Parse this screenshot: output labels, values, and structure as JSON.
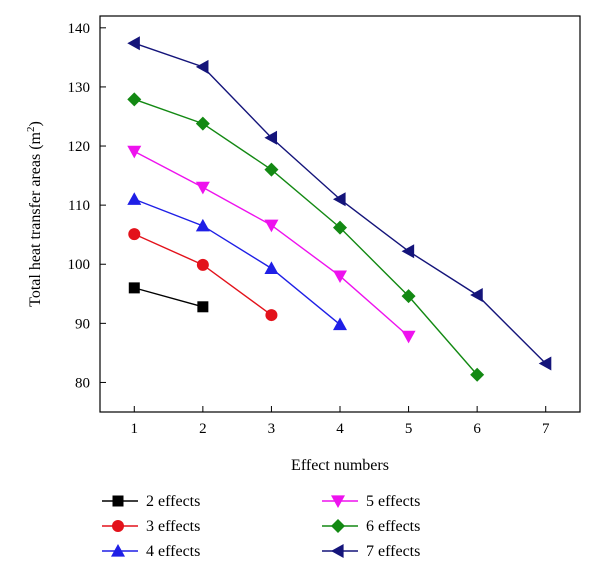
{
  "chart_data": {
    "type": "line",
    "xlabel": "Effect numbers",
    "ylabel_main": "Total heat transfer areas (m",
    "ylabel_sup": "2",
    "ylabel_end": ")",
    "xlim": [
      0.5,
      7.5
    ],
    "ylim": [
      75,
      142
    ],
    "xticks": [
      1,
      2,
      3,
      4,
      5,
      6,
      7
    ],
    "yticks": [
      80,
      90,
      100,
      110,
      120,
      130,
      140
    ],
    "grid": false,
    "legend_position": "bottom",
    "series": [
      {
        "name": "2 effects",
        "color": "#000000",
        "marker": "square",
        "x": [
          1,
          2
        ],
        "y": [
          96.0,
          92.8
        ]
      },
      {
        "name": "3 effects",
        "color": "#e3121b",
        "marker": "circle",
        "x": [
          1,
          2,
          3
        ],
        "y": [
          105.1,
          99.9,
          91.4
        ]
      },
      {
        "name": "4 effects",
        "color": "#1f1fe6",
        "marker": "triangle-up",
        "x": [
          1,
          2,
          3,
          4
        ],
        "y": [
          111.0,
          106.5,
          99.3,
          89.8
        ]
      },
      {
        "name": "5 effects",
        "color": "#ee12ee",
        "marker": "triangle-down",
        "x": [
          1,
          2,
          3,
          4,
          5
        ],
        "y": [
          119.1,
          113.0,
          106.6,
          98.0,
          87.8
        ]
      },
      {
        "name": "6 effects",
        "color": "#138913",
        "marker": "diamond",
        "x": [
          1,
          2,
          3,
          4,
          5,
          6
        ],
        "y": [
          127.9,
          123.8,
          116.0,
          106.2,
          94.6,
          81.3
        ]
      },
      {
        "name": "7 effects",
        "color": "#14147a",
        "marker": "triangle-left",
        "x": [
          1,
          2,
          3,
          4,
          5,
          6,
          7
        ],
        "y": [
          137.4,
          133.4,
          121.4,
          111.0,
          102.2,
          94.8,
          83.2
        ]
      }
    ]
  }
}
